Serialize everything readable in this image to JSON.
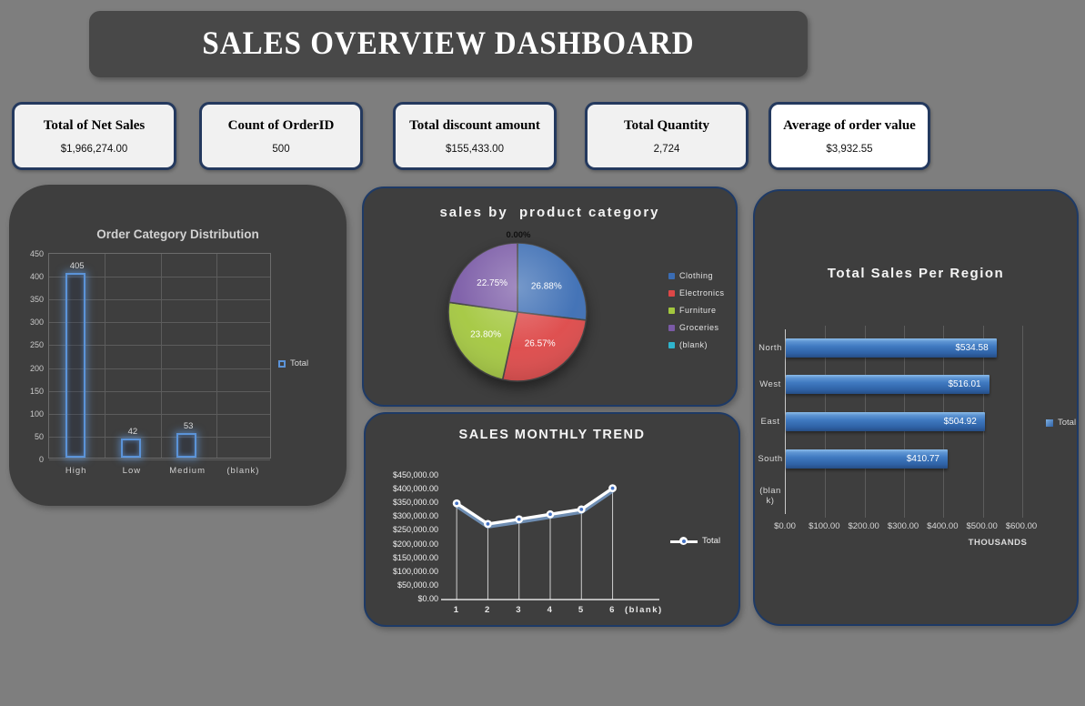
{
  "page": {
    "background": "#7e7e7e",
    "panel_color": "#3e3e3e",
    "panel_border": "#1e3a66",
    "accent_blue": "#4472c4"
  },
  "banner": {
    "title": "SALES OVERVIEW DASHBOARD",
    "background": "#484848",
    "text_color": "#ffffff"
  },
  "kpi_cards": [
    {
      "title": "Total of Net Sales",
      "value": "$1,966,274.00"
    },
    {
      "title": "Count of OrderID",
      "value": "500"
    },
    {
      "title": "Total discount amount",
      "value": "$155,433.00"
    },
    {
      "title": "Total Quantity",
      "value": "2,724"
    },
    {
      "title": "Average of order value",
      "value": "$3,932.55"
    }
  ],
  "chart_data": [
    {
      "id": "order_category_distribution",
      "type": "bar",
      "title": "Order Category Distribution",
      "categories": [
        "High",
        "Low",
        "Medium",
        "(blank)"
      ],
      "values": [
        405,
        42,
        53,
        null
      ],
      "data_labels": [
        "405",
        "42",
        "53",
        ""
      ],
      "ylim": [
        0,
        450
      ],
      "ytick_labels": [
        "450",
        "400",
        "350",
        "300",
        "250",
        "200",
        "150",
        "100",
        "50",
        "0"
      ],
      "grid": true,
      "legend_label": "Total",
      "legend_position": "right",
      "bar_style": "hollow-blue-glow",
      "bar_color": "#5b93d8"
    },
    {
      "id": "sales_by_product_category",
      "type": "pie",
      "title": "sales by  product category",
      "slices": [
        {
          "label": "Clothing",
          "pct": 26.88,
          "text": "26.88%",
          "color": "#3a6cb3"
        },
        {
          "label": "Electronics",
          "pct": 26.57,
          "text": "26.57%",
          "color": "#dd4747"
        },
        {
          "label": "Furniture",
          "pct": 23.8,
          "text": "23.80%",
          "color": "#a3c73e"
        },
        {
          "label": "Groceries",
          "pct": 22.75,
          "text": "22.75%",
          "color": "#7a5aa6"
        },
        {
          "label": "(blank)",
          "pct": 0.0,
          "text": "0.00%",
          "color": "#2fb4cd"
        }
      ],
      "start_angle_deg": 0,
      "direction": "clockwise",
      "legend_position": "right",
      "style": "3d"
    },
    {
      "id": "sales_monthly_trend",
      "type": "line",
      "title": "SALES MONTHLY TREND",
      "x": [
        "1",
        "2",
        "3",
        "4",
        "5",
        "6",
        "(blank)"
      ],
      "values": [
        350000,
        275000,
        292000,
        310000,
        328000,
        405000,
        null
      ],
      "ylim": [
        0,
        450000
      ],
      "ytick_labels": [
        "$450,000.00",
        "$400,000.00",
        "$350,000.00",
        "$300,000.00",
        "$250,000.00",
        "$200,000.00",
        "$150,000.00",
        "$100,000.00",
        "$50,000.00",
        "$0.00"
      ],
      "legend_label": "Total",
      "legend_position": "right",
      "line_color": "#ffffff",
      "marker_center_color": "#4472c4",
      "drop_lines": true
    },
    {
      "id": "total_sales_per_region",
      "type": "hbar",
      "title": "Total Sales Per Region",
      "categories": [
        "North",
        "West",
        "East",
        "South",
        "(blank)"
      ],
      "values": [
        534.58,
        516.01,
        504.92,
        410.77,
        null
      ],
      "data_labels": [
        "$534.58",
        "$516.01",
        "$504.92",
        "$410.77",
        ""
      ],
      "xlim": [
        0,
        600
      ],
      "xtick_labels": [
        "$0.00",
        "$100.00",
        "$200.00",
        "$300.00",
        "$400.00",
        "$500.00",
        "$600.00"
      ],
      "xlabel": "THOUSANDS",
      "legend_label": "Total",
      "legend_position": "right",
      "bar_color": "#3f79c0",
      "bar_style": "3d-blue-gradient"
    }
  ]
}
